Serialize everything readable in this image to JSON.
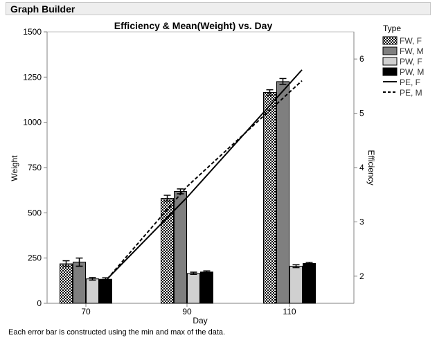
{
  "window": {
    "title": "Graph Builder"
  },
  "footnote": "Each error bar is constructed using the min and max of the data.",
  "chart_data": {
    "type": "bar",
    "title": "Efficiency & Mean(Weight) vs. Day",
    "xlabel": "Day",
    "ylabel": "Weight",
    "y2label": "Efficiency",
    "categories": [
      "70",
      "90",
      "110"
    ],
    "ylim": [
      0,
      1500
    ],
    "yticks": [
      "0",
      "250",
      "500",
      "750",
      "1000",
      "1250",
      "1500"
    ],
    "y2lim": [
      1.5,
      6.5
    ],
    "y2ticks": [
      "2",
      "3",
      "4",
      "5",
      "6"
    ],
    "legend_title": "Type",
    "legend_position": "right",
    "bar_series": [
      {
        "name": "FW, F",
        "style": "dotted",
        "values": [
          218,
          580,
          1165
        ],
        "err_low": [
          205,
          565,
          1150
        ],
        "err_high": [
          235,
          597,
          1180
        ]
      },
      {
        "name": "FW, M",
        "style": "gray",
        "values": [
          228,
          618,
          1225
        ],
        "err_low": [
          205,
          605,
          1210
        ],
        "err_high": [
          250,
          632,
          1242
        ]
      },
      {
        "name": "PW, F",
        "style": "lightgray",
        "values": [
          135,
          165,
          205
        ],
        "err_low": [
          128,
          160,
          197
        ],
        "err_high": [
          142,
          172,
          213
        ]
      },
      {
        "name": "PW, M",
        "style": "black",
        "values": [
          133,
          173,
          220
        ],
        "err_low": [
          125,
          168,
          214
        ],
        "err_high": [
          141,
          179,
          226
        ]
      }
    ],
    "line_series": [
      {
        "name": "PE, F",
        "style": "solid",
        "x": [
          "70",
          "90",
          "110"
        ],
        "y": [
          1.95,
          3.45,
          5.8
        ]
      },
      {
        "name": "PE, M",
        "style": "dashed",
        "x": [
          "70",
          "90",
          "110"
        ],
        "y": [
          1.95,
          3.65,
          5.6
        ]
      }
    ],
    "colors": {
      "gray": "#7f7f7f",
      "lightgray": "#d0d0d0",
      "black": "#000000",
      "dotted_fill": "#ffffff"
    }
  }
}
